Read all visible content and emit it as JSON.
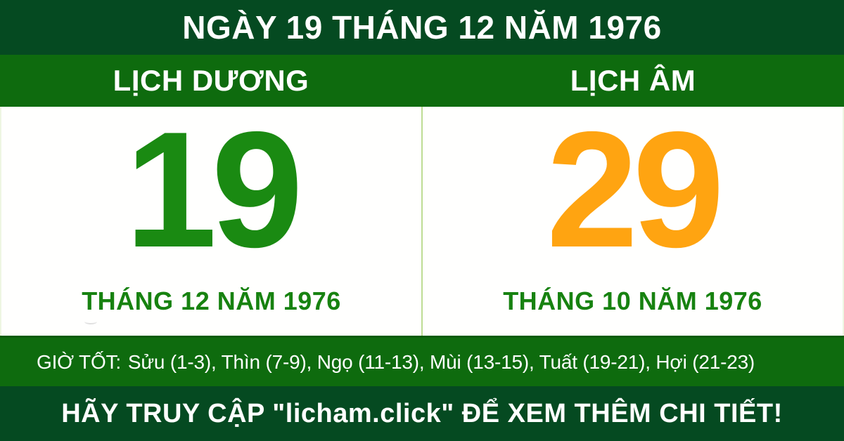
{
  "header": {
    "title": "NGÀY 19 THÁNG 12 NĂM 1976"
  },
  "tabs": {
    "solar": "LỊCH DƯƠNG",
    "lunar": "LỊCH ÂM"
  },
  "solar": {
    "day": "19",
    "month_year": "THÁNG 12 NĂM 1976"
  },
  "lunar": {
    "day": "29",
    "month_year": "THÁNG 10 NĂM 1976"
  },
  "good_hours": {
    "label": "GIỜ TỐT:",
    "hours": "Sửu (1-3), Thìn (7-9), Ngọ (11-13), Mùi (13-15), Tuất (19-21), Hợi (21-23)"
  },
  "footer": {
    "cta": "HÃY TRUY CẬP \"licham.click\" ĐỂ XEM THÊM CHI TIẾT!"
  },
  "colors": {
    "dark_green": "#054a21",
    "strip_green": "#0e6b0e",
    "solar_day_green": "#1a8a12",
    "lunar_day_orange": "#ffa411",
    "month_text_green": "#178210",
    "divider_light_green": "#bedd94"
  }
}
